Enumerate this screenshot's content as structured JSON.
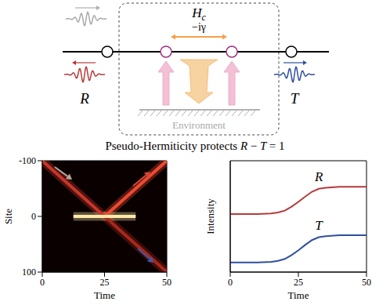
{
  "diagram": {
    "box_label": {
      "main": "H",
      "sub": "c"
    },
    "coupling_label": "−iγ",
    "reflection_label": "R",
    "transmission_label": "T",
    "environment_label": "Environment"
  },
  "title": "Pseudo-Hermiticity protects R − T = 1",
  "chart_data": [
    {
      "type": "line",
      "xlabel": "Time",
      "ylabel": "Site",
      "x": [
        0,
        12.5,
        25,
        37.5,
        50
      ],
      "series": [
        {
          "color": "#c8362a",
          "values": [
            -100,
            -50,
            0,
            null,
            null
          ]
        },
        {
          "color": "#ee4a32",
          "values": [
            null,
            null,
            0,
            -50,
            -100
          ]
        },
        {
          "color": "#a8281c",
          "values": [
            null,
            null,
            0,
            50,
            100
          ]
        },
        {
          "color": "#ffe9a8",
          "values": [
            null,
            0,
            0,
            0,
            null
          ]
        }
      ],
      "xlim": [
        0,
        50
      ],
      "xticks": [
        0,
        25,
        50
      ],
      "ylim": [
        100,
        -100
      ],
      "yticks": [
        -100,
        0,
        100
      ]
    },
    {
      "type": "line",
      "xlabel": "Time",
      "ylabel": "Intensity",
      "x": [
        0,
        5,
        10,
        15,
        17.5,
        20,
        22.5,
        25,
        27.5,
        30,
        32.5,
        35,
        40,
        45,
        50
      ],
      "series": [
        {
          "name": "R",
          "color": "#b5393a",
          "values": [
            1,
            1,
            1,
            1.01,
            1.03,
            1.07,
            1.15,
            1.25,
            1.36,
            1.46,
            1.52,
            1.54,
            1.56,
            1.56,
            1.56
          ]
        },
        {
          "name": "T",
          "color": "#2f4f9e",
          "values": [
            0,
            0,
            0,
            0.01,
            0.03,
            0.07,
            0.15,
            0.25,
            0.36,
            0.46,
            0.52,
            0.54,
            0.56,
            0.56,
            0.56
          ]
        }
      ],
      "xlim": [
        0,
        50
      ],
      "xticks": [
        0,
        25,
        50
      ],
      "ylim": [
        -0.2,
        2.1
      ],
      "tick_labels": "x"
    }
  ]
}
